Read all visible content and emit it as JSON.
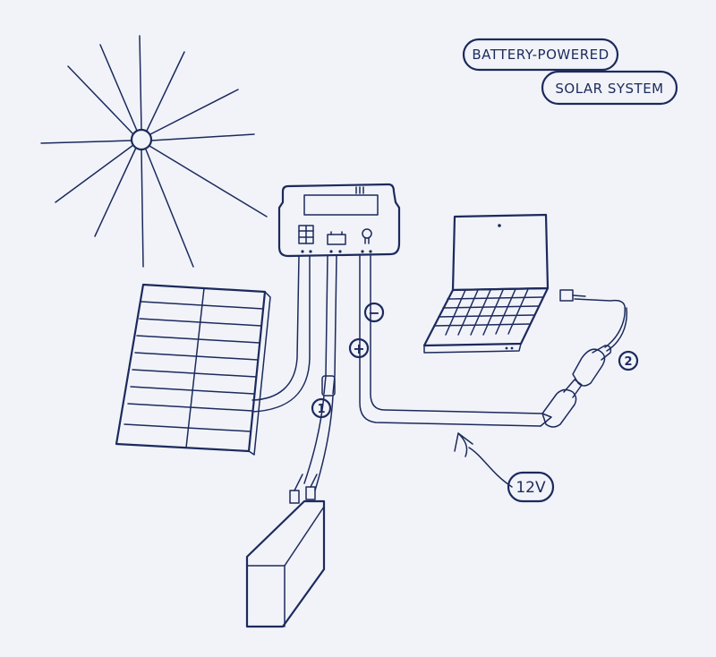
{
  "title": {
    "line1": "BATTERY-POWERED",
    "line2": "SOLAR SYSTEM"
  },
  "labels": {
    "fuse_number": "1",
    "adapter_number": "2",
    "voltage": "12V",
    "negative": "−",
    "positive": "+"
  },
  "colors": {
    "ink": "#1c2a5c",
    "background": "#f1f3f9"
  }
}
